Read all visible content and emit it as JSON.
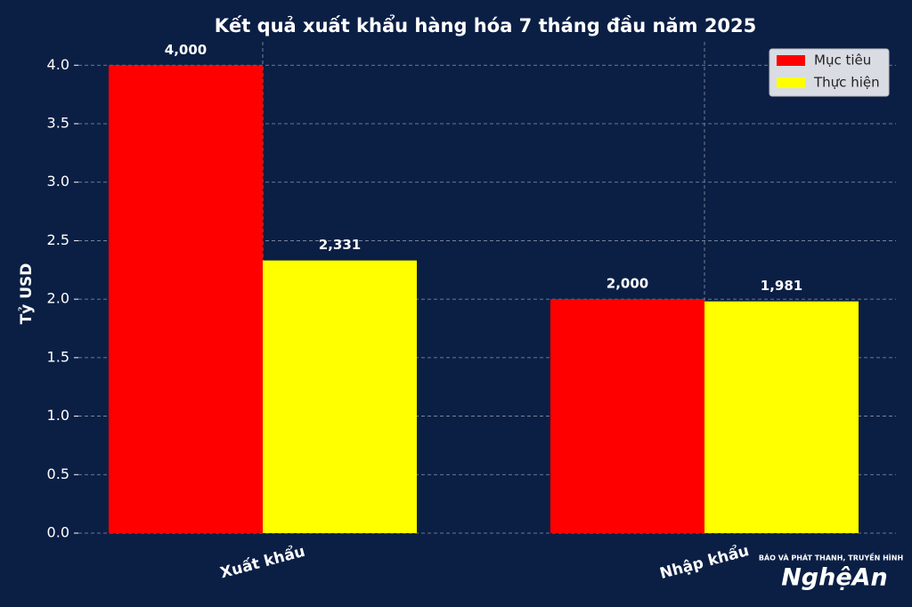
{
  "chart_data": {
    "type": "bar",
    "title": "Kết quả xuất khẩu hàng hóa 7 tháng đầu năm 2025",
    "y_label": "Tỷ USD",
    "categories": [
      "Xuất khẩu",
      "Nhập khẩu"
    ],
    "series": [
      {
        "name": "Mục tiêu",
        "color": "#ff0000",
        "values": [
          4.0,
          2.0
        ],
        "value_labels": [
          "4,000",
          "2,000"
        ]
      },
      {
        "name": "Thực hiện",
        "color": "#ffff00",
        "values": [
          2.331,
          1.981
        ],
        "value_labels": [
          "2,331",
          "1,981"
        ]
      }
    ],
    "ylim": [
      0,
      4.2
    ],
    "yticks": [
      {
        "value": 0,
        "label": "0.0"
      },
      {
        "value": 0.5,
        "label": "0.5"
      },
      {
        "value": 1,
        "label": "1.0"
      },
      {
        "value": 1.5,
        "label": "1.5"
      },
      {
        "value": 2,
        "label": "2.0"
      },
      {
        "value": 2.5,
        "label": "2.5"
      },
      {
        "value": 3,
        "label": "3.0"
      },
      {
        "value": 3.5,
        "label": "3.5"
      },
      {
        "value": 4,
        "label": "4.0"
      }
    ],
    "grid": true,
    "legend": "upper right"
  },
  "watermark": {
    "caption": "BÁO VÀ PHÁT THANH, TRUYỀN HÌNH",
    "name": "NghệAn"
  }
}
